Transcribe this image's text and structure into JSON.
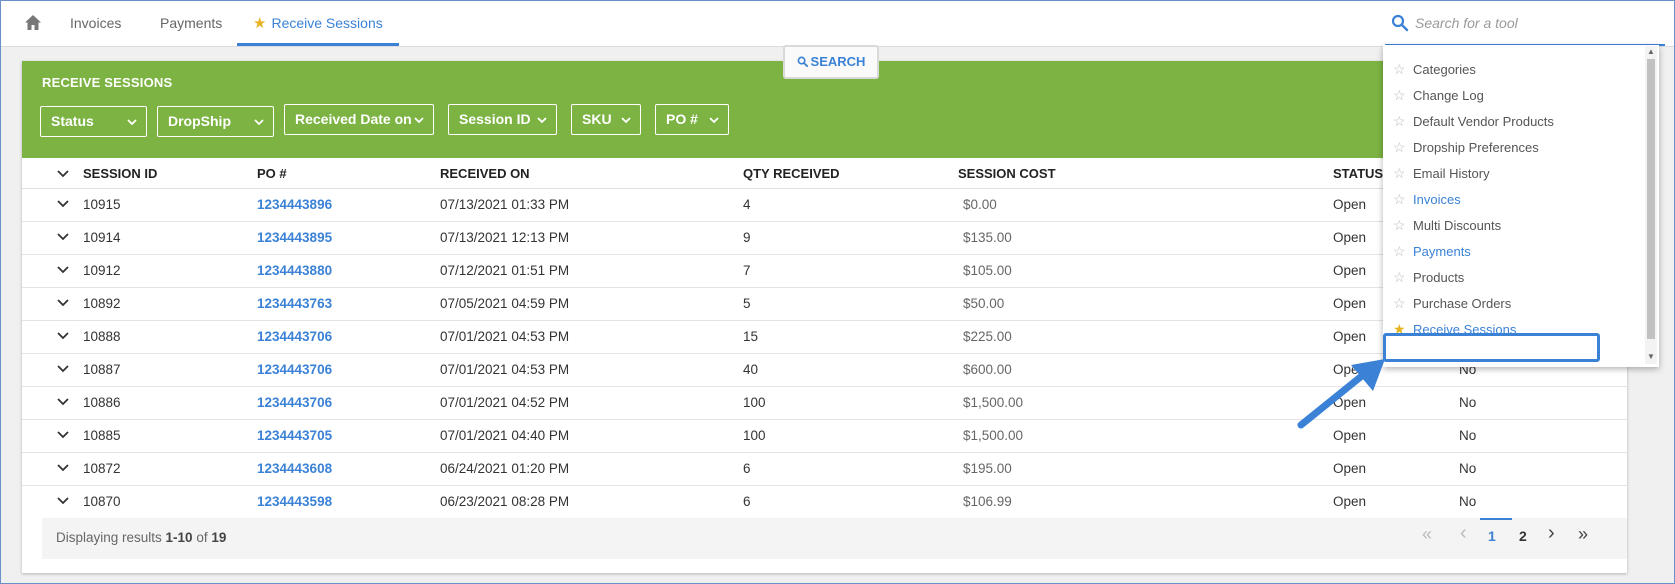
{
  "nav": {
    "tabs": [
      {
        "label": "Invoices"
      },
      {
        "label": "Payments"
      },
      {
        "label": "Receive Sessions"
      }
    ],
    "search_placeholder": "Search for a tool"
  },
  "page": {
    "title": "RECEIVE SESSIONS",
    "filters": [
      "Status",
      "DropShip",
      "Received Date on",
      "Session ID",
      "SKU",
      "PO #"
    ],
    "search_button": "SEARCH"
  },
  "table": {
    "columns": [
      "SESSION ID",
      "PO #",
      "RECEIVED ON",
      "QTY RECEIVED",
      "SESSION COST",
      "STATUS"
    ],
    "rows": [
      {
        "session_id": "10915",
        "po": "1234443896",
        "received_on": "07/13/2021 01:33 PM",
        "qty": "4",
        "cost": "$0.00",
        "status": "Open",
        "dropship": ""
      },
      {
        "session_id": "10914",
        "po": "1234443895",
        "received_on": "07/13/2021 12:13 PM",
        "qty": "9",
        "cost": "$135.00",
        "status": "Open",
        "dropship": ""
      },
      {
        "session_id": "10912",
        "po": "1234443880",
        "received_on": "07/12/2021 01:51 PM",
        "qty": "7",
        "cost": "$105.00",
        "status": "Open",
        "dropship": ""
      },
      {
        "session_id": "10892",
        "po": "1234443763",
        "received_on": "07/05/2021 04:59 PM",
        "qty": "5",
        "cost": "$50.00",
        "status": "Open",
        "dropship": ""
      },
      {
        "session_id": "10888",
        "po": "1234443706",
        "received_on": "07/01/2021 04:53 PM",
        "qty": "15",
        "cost": "$225.00",
        "status": "Open",
        "dropship": ""
      },
      {
        "session_id": "10887",
        "po": "1234443706",
        "received_on": "07/01/2021 04:53 PM",
        "qty": "40",
        "cost": "$600.00",
        "status": "Open",
        "dropship": "No"
      },
      {
        "session_id": "10886",
        "po": "1234443706",
        "received_on": "07/01/2021 04:52 PM",
        "qty": "100",
        "cost": "$1,500.00",
        "status": "Open",
        "dropship": "No"
      },
      {
        "session_id": "10885",
        "po": "1234443705",
        "received_on": "07/01/2021 04:40 PM",
        "qty": "100",
        "cost": "$1,500.00",
        "status": "Open",
        "dropship": "No"
      },
      {
        "session_id": "10872",
        "po": "1234443608",
        "received_on": "06/24/2021 01:20 PM",
        "qty": "6",
        "cost": "$195.00",
        "status": "Open",
        "dropship": "No"
      },
      {
        "session_id": "10870",
        "po": "1234443598",
        "received_on": "06/23/2021 08:28 PM",
        "qty": "6",
        "cost": "$106.99",
        "status": "Open",
        "dropship": "No"
      }
    ]
  },
  "footer": {
    "displaying_prefix": "Displaying results ",
    "range": "1-10",
    "of_text": " of ",
    "total": "19",
    "pages": [
      "1",
      "2"
    ],
    "first_icon": "«",
    "prev_icon": "‹",
    "next_icon": "›",
    "last_icon": "»"
  },
  "dropdown": {
    "items": [
      {
        "label": "Categories",
        "favorite": false,
        "link": false
      },
      {
        "label": "Change Log",
        "favorite": false,
        "link": false
      },
      {
        "label": "Default Vendor Products",
        "favorite": false,
        "link": false
      },
      {
        "label": "Dropship Preferences",
        "favorite": false,
        "link": false
      },
      {
        "label": "Email History",
        "favorite": false,
        "link": false
      },
      {
        "label": "Invoices",
        "favorite": false,
        "link": true
      },
      {
        "label": "Multi Discounts",
        "favorite": false,
        "link": false
      },
      {
        "label": "Payments",
        "favorite": false,
        "link": true
      },
      {
        "label": "Products",
        "favorite": false,
        "link": false
      },
      {
        "label": "Purchase Orders",
        "favorite": false,
        "link": false
      },
      {
        "label": "Receive Sessions",
        "favorite": true,
        "link": true
      }
    ]
  },
  "colors": {
    "accent": "#3b82d6",
    "header_green": "#7cb342",
    "star_gold": "#e6b422"
  }
}
